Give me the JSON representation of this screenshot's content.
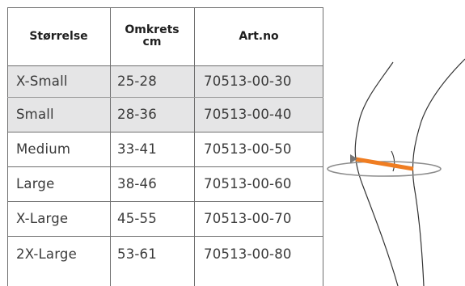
{
  "table": {
    "headers": [
      {
        "label": "Størrelse"
      },
      {
        "line1": "Omkrets",
        "line2": "cm"
      },
      {
        "label": "Art.no"
      }
    ],
    "rows": [
      {
        "size": "X-Small",
        "circumference": "25-28",
        "art_no": "70513-00-30",
        "shaded": true
      },
      {
        "size": "Small",
        "circumference": "28-36",
        "art_no": "70513-00-40",
        "shaded": true
      },
      {
        "size": "Medium",
        "circumference": "33-41",
        "art_no": "70513-00-50",
        "shaded": false
      },
      {
        "size": "Large",
        "circumference": "38-46",
        "art_no": "70513-00-60",
        "shaded": false
      },
      {
        "size": "X-Large",
        "circumference": "45-55",
        "art_no": "70513-00-70",
        "shaded": false
      },
      {
        "size": "2X-Large",
        "circumference": "53-61",
        "art_no": "70513-00-80",
        "shaded": false
      }
    ]
  },
  "illustration": {
    "icon": "knee-measurement-icon",
    "colors": {
      "line": "#333333",
      "tape": "#ef7d22",
      "ring": "#808080",
      "shade": "#e5e5e6"
    }
  }
}
